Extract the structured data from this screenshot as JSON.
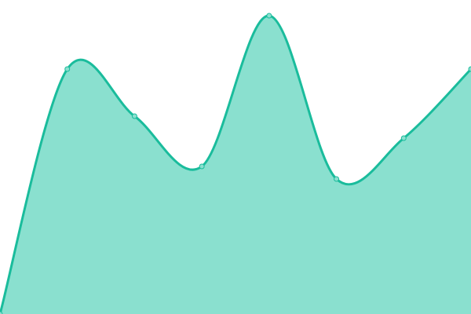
{
  "chart_data": {
    "type": "area",
    "x": [
      0,
      1,
      2,
      3,
      4,
      5,
      6,
      7
    ],
    "values": [
      0,
      78,
      63,
      47,
      95,
      43,
      56,
      78
    ],
    "ylim": [
      0,
      100
    ],
    "xlim": [
      0,
      7
    ],
    "title": "",
    "xlabel": "",
    "ylabel": "",
    "grid": false,
    "smooth": true,
    "colors": {
      "line": "#1abc9c",
      "fill": "#8ae0cf",
      "marker": "#8ae0cf"
    }
  }
}
